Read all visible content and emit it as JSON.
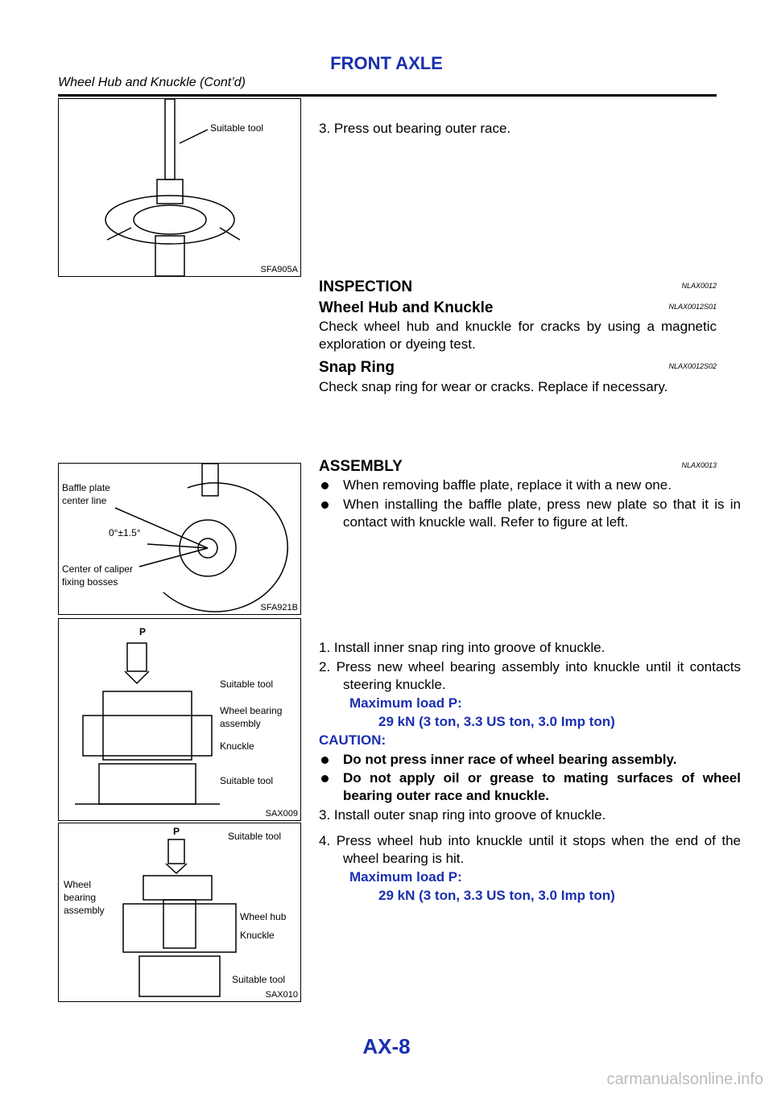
{
  "header": {
    "title": "FRONT AXLE",
    "subtitle": "Wheel Hub and Knuckle (Cont’d)"
  },
  "figures": [
    {
      "code": "SFA905A",
      "labels": [
        "Suitable tool"
      ]
    },
    {
      "code": "SFA921B",
      "labels": [
        "Baffle plate",
        "center line",
        "0°±1.5°",
        "Center of caliper",
        "fixing bosses"
      ]
    },
    {
      "code": "SAX009",
      "labels": [
        "P",
        "Suitable tool",
        "Wheel bearing",
        "assembly",
        "Knuckle",
        "Suitable tool"
      ]
    },
    {
      "code": "SAX010",
      "labels": [
        "P",
        "Suitable tool",
        "Wheel",
        "bearing",
        "assembly",
        "Wheel hub",
        "Knuckle",
        "Suitable tool"
      ]
    }
  ],
  "blocks": [
    {
      "text": "3. Press out bearing outer race."
    },
    {
      "heading": "INSPECTION",
      "ref": "NLAX0012"
    },
    {
      "heading": "Wheel Hub and Knuckle",
      "ref": "NLAX0012S01"
    },
    {
      "text": "Check wheel hub and knuckle for cracks by using a magnetic exploration or dyeing test."
    },
    {
      "heading": "Snap Ring",
      "ref": "NLAX0012S02"
    },
    {
      "text": "Check snap ring for wear or cracks. Replace if necessary."
    },
    {
      "heading": "ASSEMBLY",
      "ref": "NLAX0013"
    },
    {
      "text": "When removing baffle plate, replace it with a new one."
    },
    {
      "text": "When installing the baffle plate, press new plate so that it is in contact with knuckle wall. Refer to figure at left."
    },
    {
      "text": "1. Install inner snap ring into groove of knuckle."
    },
    {
      "text": "2. Press new wheel bearing assembly into knuckle until it contacts steering knuckle."
    },
    {
      "text": "Maximum load P:"
    },
    {
      "text": "29 kN (3 ton, 3.3 US ton, 3.0 Imp ton)"
    },
    {
      "text": "CAUTION:"
    },
    {
      "text": "Do not press inner race of wheel bearing assembly."
    },
    {
      "text": "Do not apply oil or grease to mating surfaces of wheel bearing outer race and knuckle."
    },
    {
      "text": "3. Install outer snap ring into groove of knuckle."
    },
    {
      "text": "4. Press wheel hub into knuckle until it stops when the end of the wheel bearing is hit."
    },
    {
      "text": "Maximum load P:"
    },
    {
      "text": "29 kN (3 ton, 3.3 US ton, 3.0 Imp ton)"
    }
  ],
  "footer": {
    "page": "AX-8",
    "watermark": "carmanualsonline.info"
  }
}
